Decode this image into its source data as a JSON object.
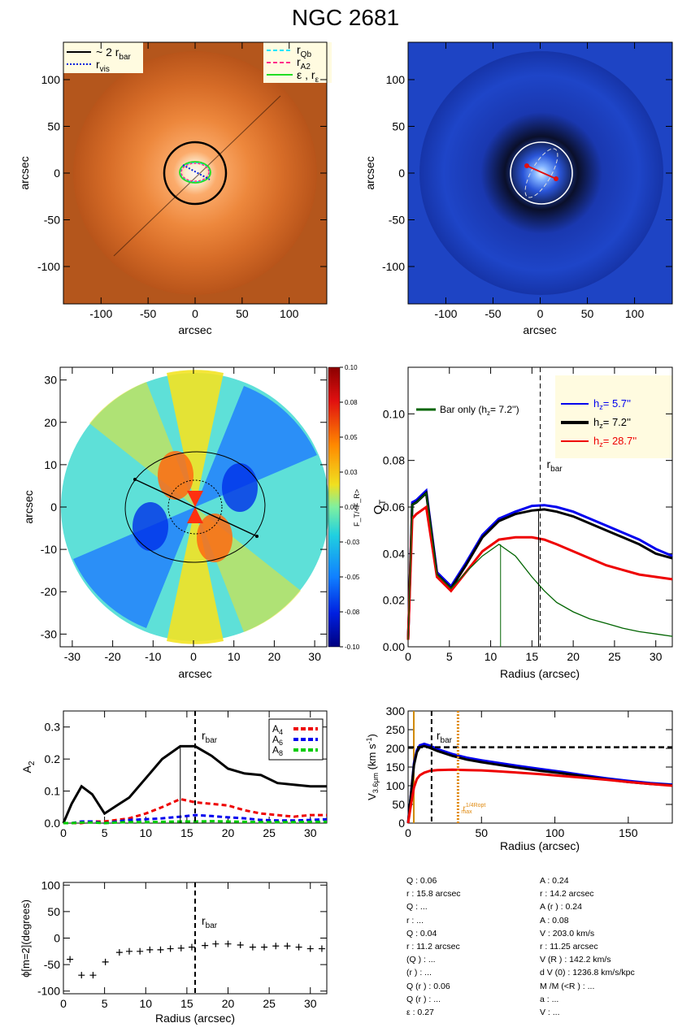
{
  "title": "NGC 2681",
  "chart_data": [
    {
      "id": "image_top_left",
      "type": "image",
      "xlabel": "arcsec",
      "ylabel": "arcsec",
      "xlim": [
        -140,
        140
      ],
      "ylim": [
        -140,
        140
      ],
      "xticks": [
        -100,
        -50,
        0,
        50,
        100
      ],
      "yticks": [
        -100,
        -50,
        0,
        50,
        100
      ],
      "legend_left": [
        "~ 2 r",
        "bar",
        "r",
        "vis"
      ],
      "legend_right": [
        "r",
        "Qb",
        "r",
        "A2",
        "ε , r",
        "ε"
      ],
      "colors": {
        "circle": "#000000",
        "rQb": "#00e5ff",
        "rA2": "#ff2a8a",
        "eps": "#22dd22",
        "rvis": "#0022dd"
      }
    },
    {
      "id": "image_top_right",
      "type": "image",
      "xlabel": "arcsec",
      "ylabel": "arcsec",
      "xlim": [
        -140,
        140
      ],
      "ylim": [
        -140,
        140
      ],
      "xticks": [
        -100,
        -50,
        0,
        50,
        100
      ],
      "yticks": [
        -100,
        -50,
        0,
        50,
        100
      ]
    },
    {
      "id": "qt_map",
      "type": "heatmap",
      "xlabel": "arcsec",
      "ylabel": "arcsec",
      "xlim": [
        -33,
        33
      ],
      "ylim": [
        -33,
        33
      ],
      "xticks": [
        -30,
        -20,
        -10,
        0,
        10,
        20,
        30
      ],
      "yticks": [
        -30,
        -20,
        -10,
        0,
        10,
        20,
        30
      ],
      "colorbar_label": "F_T/<F_R>",
      "colorbar_ticks": [
        "0.10",
        "0.08",
        "0.05",
        "0.03",
        "0.00",
        "-0.03",
        "-0.05",
        "-0.08",
        "-0.10"
      ],
      "colorbar_range": [
        -0.1,
        0.1
      ]
    },
    {
      "id": "qt_profile",
      "type": "line",
      "xlabel": "Radius (arcsec)",
      "ylabel": "Q",
      "ylabel_sub": "T",
      "xlim": [
        0,
        32
      ],
      "ylim": [
        0,
        0.12
      ],
      "xticks": [
        0,
        5,
        10,
        15,
        20,
        25,
        30
      ],
      "yticks": [
        "0.00",
        "0.02",
        "0.04",
        "0.06",
        "0.08",
        "0.10"
      ],
      "vline_dashed": 16,
      "vline_label": "r",
      "vline_label_sub": "bar",
      "vline_green": 11.2,
      "vline_black_solid": 15.8,
      "legend_inner": "Bar only (h",
      "legend_inner_tail": "=  7.2'')",
      "x": [
        0,
        0.5,
        1,
        2.2,
        3.5,
        5.2,
        7,
        9,
        11,
        13,
        15,
        16.5,
        18,
        20,
        22,
        24,
        26,
        28,
        30,
        32
      ],
      "series": [
        {
          "name": "h =   5.7''",
          "color": "#0000ee",
          "values": [
            0.003,
            0.062,
            0.063,
            0.067,
            0.032,
            0.026,
            0.036,
            0.048,
            0.055,
            0.058,
            0.0605,
            0.0608,
            0.06,
            0.058,
            0.055,
            0.052,
            0.049,
            0.046,
            0.042,
            0.039
          ]
        },
        {
          "name": "h =   7.2''",
          "color": "#000000",
          "values": [
            0.003,
            0.061,
            0.062,
            0.066,
            0.031,
            0.025,
            0.035,
            0.047,
            0.054,
            0.057,
            0.0585,
            0.059,
            0.058,
            0.056,
            0.053,
            0.05,
            0.047,
            0.044,
            0.04,
            0.038
          ]
        },
        {
          "name": "h =  28.7''",
          "color": "#ee0000",
          "values": [
            0.003,
            0.055,
            0.057,
            0.06,
            0.03,
            0.024,
            0.032,
            0.041,
            0.046,
            0.047,
            0.047,
            0.046,
            0.044,
            0.041,
            0.038,
            0.035,
            0.033,
            0.031,
            0.03,
            0.029
          ]
        },
        {
          "name": "Bar only",
          "color": "#006400",
          "values": [
            0.003,
            0.061,
            0.062,
            0.066,
            0.031,
            0.025,
            0.032,
            0.039,
            0.044,
            0.039,
            0.03,
            0.024,
            0.019,
            0.015,
            0.012,
            0.01,
            0.008,
            0.0065,
            0.0055,
            0.0045
          ]
        }
      ]
    },
    {
      "id": "a2_profile",
      "type": "line",
      "ylabel": "A",
      "ylabel_sub": "2",
      "xlim": [
        0,
        32
      ],
      "ylim": [
        0,
        0.35
      ],
      "xticks": [
        0,
        5,
        10,
        15,
        20,
        25,
        30
      ],
      "yticks": [
        "0.0",
        "0.1",
        "0.2",
        "0.3"
      ],
      "vline_dashed": 16,
      "vline_thin": 14.2,
      "vline_label": "r",
      "vline_label_sub": "bar",
      "x": [
        0,
        1,
        2.2,
        3.5,
        5,
        6.5,
        8,
        10,
        12,
        14.2,
        16,
        18,
        20,
        22,
        24,
        26,
        28,
        30,
        32
      ],
      "series": [
        {
          "name": "A2",
          "color": "#000000",
          "values": [
            0,
            0.06,
            0.115,
            0.09,
            0.03,
            0.055,
            0.08,
            0.14,
            0.2,
            0.24,
            0.24,
            0.21,
            0.17,
            0.155,
            0.15,
            0.125,
            0.12,
            0.115,
            0.115
          ]
        },
        {
          "name": "A4",
          "color": "#ee0000",
          "values": [
            0,
            0.0,
            0.0,
            0.005,
            0.005,
            0.01,
            0.015,
            0.03,
            0.05,
            0.075,
            0.065,
            0.06,
            0.055,
            0.04,
            0.03,
            0.025,
            0.02,
            0.025,
            0.025
          ]
        },
        {
          "name": "A6",
          "color": "#0000ee",
          "values": [
            0,
            0.0,
            0.005,
            0.005,
            0.0,
            0.005,
            0.01,
            0.012,
            0.015,
            0.02,
            0.025,
            0.022,
            0.018,
            0.015,
            0.01,
            0.008,
            0.008,
            0.01,
            0.012
          ]
        },
        {
          "name": "A8",
          "color": "#00cc00",
          "values": [
            0,
            0.0,
            0.002,
            0.002,
            0.0,
            0.002,
            0.003,
            0.003,
            0.004,
            0.005,
            0.005,
            0.006,
            0.005,
            0.004,
            0.003,
            0.003,
            0.003,
            0.004,
            0.004
          ]
        }
      ],
      "legend": [
        {
          "label": "A",
          "sub": "4"
        },
        {
          "label": "A",
          "sub": "6"
        },
        {
          "label": "A",
          "sub": "8"
        }
      ]
    },
    {
      "id": "rotation_curve",
      "type": "line",
      "xlabel": "Radius (arcsec)",
      "ylabel": "V",
      "ylabel_sub": "3.6μm",
      "ylabel_tail": " (km s",
      "ylabel_sup": "-1",
      "ylabel_end": ")",
      "xlim": [
        0,
        180
      ],
      "ylim": [
        0,
        300
      ],
      "xticks": [
        0,
        50,
        100,
        150
      ],
      "yticks": [
        0,
        50,
        100,
        150,
        200,
        250,
        300
      ],
      "hline_dashed": 203,
      "vline_dashed": 16,
      "vline_dotted": 34,
      "vline_label": "r",
      "vline_label_sub": "bar",
      "rmax_label": "r",
      "rmax_sup": "1/4Ropt",
      "rmax_sub": "max",
      "x": [
        0,
        2,
        4,
        6,
        8,
        11,
        15,
        20,
        30,
        40,
        50,
        60,
        75,
        90,
        105,
        120,
        135,
        150,
        165,
        180
      ],
      "series": [
        {
          "name": "h 5.7",
          "color": "#0000ee",
          "values": [
            0,
            80,
            160,
            195,
            208,
            212,
            207,
            198,
            185,
            175,
            168,
            162,
            153,
            145,
            137,
            128,
            120,
            113,
            107,
            103
          ]
        },
        {
          "name": "h 7.2",
          "color": "#000000",
          "values": [
            0,
            78,
            155,
            190,
            203,
            206,
            201,
            193,
            180,
            170,
            163,
            157,
            148,
            140,
            133,
            125,
            117,
            110,
            105,
            101
          ]
        },
        {
          "name": "h 28.7",
          "color": "#ee0000",
          "values": [
            0,
            50,
            95,
            118,
            128,
            135,
            140,
            142,
            143,
            142,
            141,
            139,
            135,
            131,
            126,
            121,
            116,
            110,
            105,
            100
          ]
        }
      ]
    },
    {
      "id": "phase_profile",
      "type": "scatter",
      "xlabel": "Radius (arcsec)",
      "ylabel": "ϕ[m=2](degrees)",
      "xlim": [
        0,
        32
      ],
      "ylim": [
        -105,
        105
      ],
      "xticks": [
        0,
        5,
        10,
        15,
        20,
        25,
        30
      ],
      "yticks": [
        100,
        50,
        0,
        -50,
        -100
      ],
      "vline_dashed": 16,
      "vline_label": "r",
      "vline_label_sub": "bar",
      "x": [
        0.8,
        2.2,
        3.6,
        5.1,
        6.8,
        8.0,
        9.3,
        10.5,
        11.8,
        13.0,
        14.3,
        15.6,
        17.2,
        18.5,
        20.0,
        21.5,
        23.0,
        24.4,
        25.8,
        27.2,
        28.6,
        30.0,
        31.4
      ],
      "values": [
        -40,
        -70,
        -70,
        -45,
        -27,
        -25,
        -25,
        -22,
        -22,
        -20,
        -19,
        -17,
        -14,
        -11,
        -11,
        -13,
        -17,
        -17,
        -15,
        -15,
        -17,
        -20,
        -20
      ]
    }
  ],
  "stats_left": [
    "Q  :  0.06 ",
    "r    :  15.8  arcsec",
    "Q          : ...",
    "r            : ...",
    "Q        :  0.04",
    "r        :  11.2 arcsec",
    "(Q        )            : ...",
    "(r        )            : ...",
    "Q (r   ) :  0.06 ",
    "Q            (r    ) : ...",
    "ε :  0.27"
  ],
  "stats_right": [
    "A      :  0.24",
    "r    :  14.2 arcsec",
    "A (r   ) :  0.24",
    "A      :  0.08",
    "V          :  203.0        km/s",
    "r          :  11.25        arcsec",
    "V     (R   ) :  142.2       km/s",
    "d V     (0) :  1236.8          km/s/kpc",
    "M /M (<R   ) : ...",
    "a : ...",
    "V  : ..."
  ]
}
